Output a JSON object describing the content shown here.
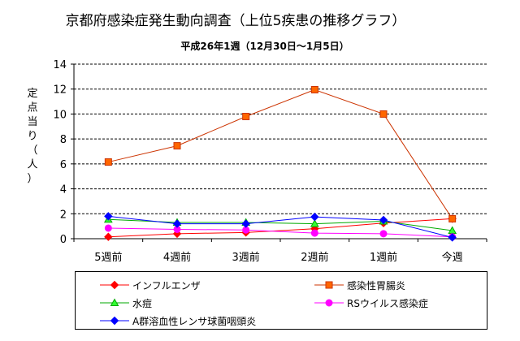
{
  "chart_data": {
    "type": "line",
    "title": "京都府感染症発生動向調査（上位5疾患の推移グラフ）",
    "subtitle": "平成26年1週（12月30日〜1月5日）",
    "xlabel": "",
    "ylabel": "定点当り（人）",
    "ylabel_chars": [
      "定",
      "点",
      "当",
      "り",
      "（",
      "人",
      "）"
    ],
    "categories": [
      "5週前",
      "4週前",
      "3週前",
      "2週前",
      "1週前",
      "今週"
    ],
    "ylim": [
      0,
      14
    ],
    "yticks": [
      "0",
      "2",
      "4",
      "6",
      "8",
      "10",
      "12",
      "14"
    ],
    "grid": "horizontal dashed",
    "legend_position": "bottom",
    "series": [
      {
        "name": "インフルエンザ",
        "color": "#ff0000",
        "marker": "diamond",
        "marker_fill": "#ff0000",
        "values": [
          0.15,
          0.4,
          0.5,
          0.8,
          1.25,
          1.6
        ]
      },
      {
        "name": "感染性胃腸炎",
        "color": "#cc3300",
        "marker": "square",
        "marker_fill": "#ff6600",
        "values": [
          6.15,
          7.45,
          9.8,
          11.95,
          10.0,
          1.6
        ]
      },
      {
        "name": "水痘",
        "color": "#00aa00",
        "marker": "triangle",
        "marker_fill": "#33ff33",
        "values": [
          1.55,
          1.3,
          1.3,
          1.2,
          1.4,
          0.65
        ]
      },
      {
        "name": "RSウイルス感染症",
        "color": "#ff00ff",
        "marker": "circle",
        "marker_fill": "#ff00ff",
        "values": [
          0.85,
          0.75,
          0.7,
          0.45,
          0.4,
          0.15
        ]
      },
      {
        "name": "A群溶血性レンサ球菌咽頭炎",
        "color": "#0000ff",
        "marker": "diamond",
        "marker_fill": "#0000ff",
        "values": [
          1.8,
          1.2,
          1.2,
          1.75,
          1.5,
          0.1
        ]
      }
    ]
  }
}
